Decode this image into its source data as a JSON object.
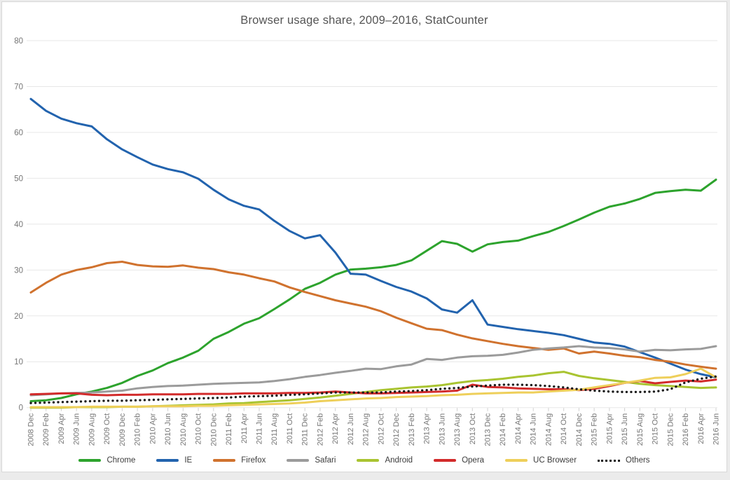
{
  "page": {
    "background": "#ebebeb",
    "card_background": "#ffffff",
    "card_border_color": "#d8d8d8"
  },
  "chart_data": {
    "type": "line",
    "title": "Browser usage share, 2009–2016, StatCounter",
    "title_color": "#545454",
    "xlabel": "",
    "ylabel": "",
    "ylim": [
      0,
      80
    ],
    "y_ticks": [
      0,
      10,
      20,
      30,
      40,
      50,
      60,
      70,
      80
    ],
    "grid": "horizontal",
    "gridline_color": "#e7e7e7",
    "tick_mark_color": "#d0d0d0",
    "axis_label_color": "#767676",
    "legend_position": "bottom",
    "x_tick_labels": [
      "2008 Dec",
      "2009 Feb",
      "2009 Apr",
      "2009 Jun",
      "2009 Aug",
      "2009 Oct",
      "2009 Dec",
      "2010 Feb",
      "2010 Apr",
      "2010 Jun",
      "2010 Aug",
      "2010 Oct",
      "2010 Dec",
      "2011 Feb",
      "2011 Apr",
      "2011 Jun",
      "2011 Aug",
      "2011 Oct",
      "2011 Dec",
      "2012 Feb",
      "2012 Apr",
      "2012 Jun",
      "2012 Aug",
      "2012 Oct",
      "2012 Dec",
      "2013 Feb",
      "2013 Apr",
      "2013 Jun",
      "2013 Aug",
      "2013 Oct",
      "2013 Dec",
      "2014 Feb",
      "2014 Apr",
      "2014 Jun",
      "2014 Aug",
      "2014 Oct",
      "2014 Dec",
      "2015 Feb",
      "2015 Apr",
      "2015 Jun",
      "2015 Aug",
      "2015 Oct",
      "2015 Dec",
      "2016 Feb",
      "2016 Apr",
      "2016 Jun"
    ],
    "series": [
      {
        "name": "Chrome",
        "color": "#2da32d",
        "style": "solid",
        "values": [
          1.4,
          1.6,
          2.1,
          2.9,
          3.5,
          4.3,
          5.4,
          6.9,
          8.1,
          9.7,
          10.9,
          12.4,
          15.0,
          16.5,
          18.3,
          19.5,
          21.5,
          23.6,
          25.9,
          27.2,
          29.0,
          30.1,
          30.3,
          30.6,
          31.1,
          32.1,
          34.2,
          36.3,
          35.7,
          34.0,
          35.6,
          36.1,
          36.4,
          37.4,
          38.3,
          39.6,
          41.0,
          42.5,
          43.8,
          44.5,
          45.5,
          46.8,
          47.2,
          47.5,
          47.3,
          49.7
        ]
      },
      {
        "name": "IE",
        "color": "#2263ae",
        "style": "solid",
        "values": [
          67.3,
          64.7,
          63.0,
          62.0,
          61.3,
          58.5,
          56.3,
          54.6,
          53.0,
          52.0,
          51.3,
          49.9,
          47.5,
          45.4,
          44.0,
          43.2,
          40.7,
          38.5,
          36.9,
          37.6,
          33.8,
          29.2,
          29.0,
          27.6,
          26.3,
          25.3,
          23.8,
          21.4,
          20.7,
          23.4,
          18.1,
          17.6,
          17.1,
          16.7,
          16.3,
          15.8,
          15.0,
          14.2,
          13.9,
          13.3,
          12.1,
          10.9,
          9.6,
          8.3,
          7.3,
          6.6
        ]
      },
      {
        "name": "Firefox",
        "color": "#d0722e",
        "style": "solid",
        "values": [
          25.1,
          27.2,
          29.0,
          30.0,
          30.6,
          31.5,
          31.8,
          31.1,
          30.8,
          30.7,
          31.0,
          30.5,
          30.2,
          29.5,
          29.0,
          28.2,
          27.5,
          26.2,
          25.2,
          24.3,
          23.4,
          22.7,
          22.0,
          21.0,
          19.6,
          18.4,
          17.2,
          16.9,
          15.9,
          15.1,
          14.5,
          13.9,
          13.4,
          13.0,
          12.6,
          12.9,
          11.8,
          12.2,
          11.8,
          11.3,
          11.0,
          10.4,
          10.0,
          9.4,
          8.9,
          8.5
        ]
      },
      {
        "name": "Safari",
        "color": "#9b9b9b",
        "style": "solid",
        "values": [
          2.7,
          2.9,
          3.1,
          3.2,
          3.3,
          3.5,
          3.7,
          4.2,
          4.5,
          4.7,
          4.8,
          5.0,
          5.2,
          5.3,
          5.4,
          5.5,
          5.8,
          6.2,
          6.7,
          7.1,
          7.6,
          8.0,
          8.5,
          8.4,
          9.0,
          9.4,
          10.6,
          10.4,
          10.9,
          11.2,
          11.3,
          11.5,
          12.0,
          12.6,
          12.9,
          13.1,
          13.4,
          13.1,
          13.0,
          12.7,
          12.2,
          12.6,
          12.5,
          12.7,
          12.8,
          13.4
        ]
      },
      {
        "name": "Android",
        "color": "#a9c431",
        "style": "solid",
        "values": [
          0.0,
          0.0,
          0.0,
          0.1,
          0.1,
          0.1,
          0.2,
          0.2,
          0.3,
          0.4,
          0.5,
          0.6,
          0.7,
          0.9,
          1.0,
          1.2,
          1.4,
          1.6,
          1.9,
          2.2,
          2.6,
          3.0,
          3.4,
          3.8,
          4.1,
          4.4,
          4.6,
          4.9,
          5.4,
          5.8,
          6.0,
          6.3,
          6.7,
          7.0,
          7.5,
          7.8,
          6.9,
          6.4,
          6.0,
          5.6,
          5.2,
          4.9,
          4.7,
          4.5,
          4.3,
          4.4
        ]
      },
      {
        "name": "Opera",
        "color": "#d22b2b",
        "style": "solid",
        "values": [
          2.9,
          3.0,
          3.1,
          3.1,
          2.8,
          2.7,
          2.8,
          2.8,
          2.9,
          2.9,
          2.9,
          3.0,
          3.0,
          3.0,
          3.1,
          3.1,
          3.1,
          3.2,
          3.2,
          3.3,
          3.5,
          3.3,
          3.1,
          3.1,
          3.2,
          3.3,
          3.4,
          3.5,
          3.7,
          5.0,
          4.5,
          4.4,
          4.2,
          4.1,
          4.0,
          4.0,
          3.8,
          4.1,
          4.7,
          5.4,
          5.8,
          5.3,
          5.6,
          5.9,
          5.7,
          6.1
        ]
      },
      {
        "name": "UC Browser",
        "color": "#eecf5a",
        "style": "solid",
        "values": [
          0.1,
          0.1,
          0.1,
          0.1,
          0.2,
          0.2,
          0.2,
          0.2,
          0.3,
          0.3,
          0.3,
          0.4,
          0.4,
          0.5,
          0.6,
          0.7,
          0.8,
          0.9,
          1.1,
          1.4,
          1.6,
          1.8,
          2.0,
          2.1,
          2.3,
          2.4,
          2.5,
          2.7,
          2.8,
          3.0,
          3.1,
          3.2,
          3.3,
          3.3,
          3.5,
          3.7,
          3.9,
          4.4,
          4.9,
          5.4,
          5.9,
          6.5,
          6.6,
          7.3,
          8.5,
          6.6
        ]
      },
      {
        "name": "Others",
        "color": "#1a1a1a",
        "style": "dotted",
        "values": [
          1.0,
          1.1,
          1.2,
          1.3,
          1.4,
          1.5,
          1.5,
          1.6,
          1.7,
          1.8,
          1.9,
          2.0,
          2.1,
          2.2,
          2.4,
          2.5,
          2.6,
          2.8,
          2.9,
          3.1,
          3.3,
          3.3,
          3.3,
          3.3,
          3.5,
          3.6,
          3.8,
          4.1,
          4.3,
          4.6,
          4.8,
          5.0,
          5.0,
          4.9,
          4.7,
          4.4,
          4.0,
          3.7,
          3.5,
          3.4,
          3.4,
          3.5,
          4.0,
          5.5,
          6.3,
          6.8
        ]
      }
    ]
  }
}
